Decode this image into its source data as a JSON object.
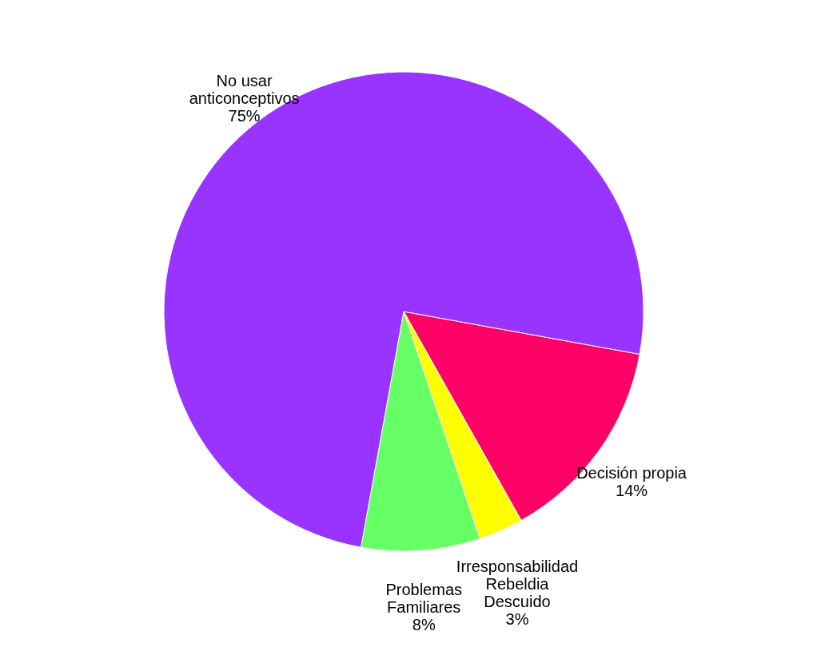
{
  "chart_data": {
    "type": "pie",
    "categories": [
      "Decisión propia",
      "Irresponsabilidad\nRebeldia\nDescuido",
      "Problemas\nFamiliares",
      "No usar\nanticonceptivos"
    ],
    "values": [
      14,
      3,
      8,
      75
    ],
    "value_labels": [
      "14%",
      "3%",
      "8%",
      "75%"
    ],
    "colors": [
      "#ff0066",
      "#ffff00",
      "#66ff66",
      "#9933ff"
    ],
    "legend": false
  }
}
